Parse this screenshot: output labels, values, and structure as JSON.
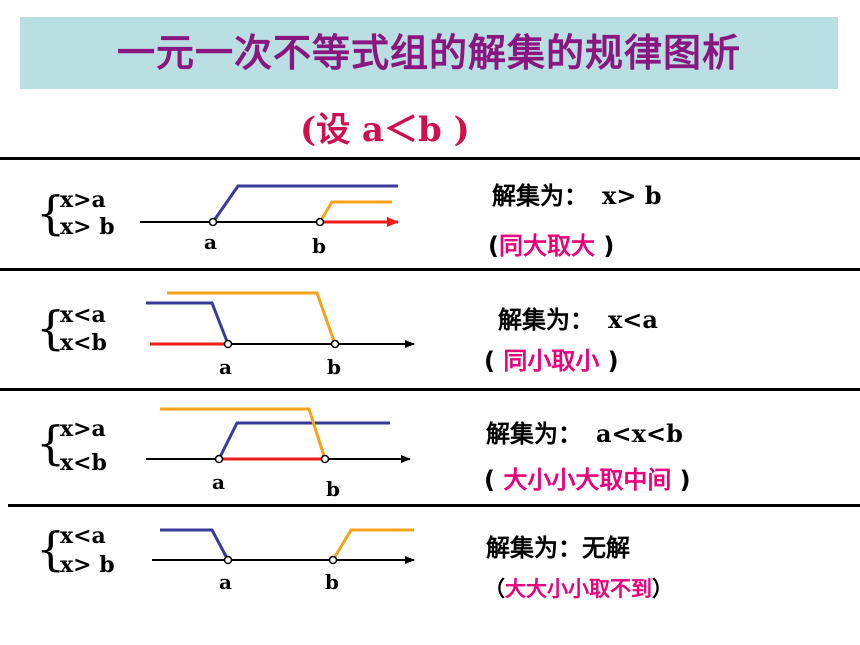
{
  "title": "一元一次不等式组的解集的规律图析",
  "subtitle": "(设 a＜b )",
  "rows": [
    {
      "cond1": "x>a",
      "cond2": "x> b",
      "result_label": "解集为：",
      "result_value": "x> b",
      "rule_open": "(",
      "rule_text": "同大取大",
      "rule_close": " )",
      "point_a": "a",
      "point_b": "b"
    },
    {
      "cond1": "x<a",
      "cond2": "x<b",
      "result_label": "解集为：",
      "result_value": "x<a",
      "rule_open": "( ",
      "rule_text": "同小取小",
      "rule_close": " )",
      "point_a": "a",
      "point_b": "b"
    },
    {
      "cond1": "x>a",
      "cond2": "x<b",
      "result_label": "解集为：",
      "result_value": "a<x<b",
      "rule_open": "( ",
      "rule_text": "大小小大取中间",
      "rule_close": " )",
      "point_a": "a",
      "point_b": "b"
    },
    {
      "cond1": "x<a",
      "cond2": "x> b",
      "result_label": "解集为：",
      "result_value": "无解",
      "rule_open": "（",
      "rule_text": "大大小小取不到",
      "rule_close": "）",
      "point_a": "a",
      "point_b": "b"
    }
  ],
  "colors": {
    "title_text": "#8a1780",
    "title_bg": "#b9dfe2",
    "subtitle": "#d0104c",
    "blue_line": "#3a3a9a",
    "orange_line": "#f5a31a",
    "red_line": "#ee1b1b",
    "rule_highlight": "#e8007c"
  }
}
